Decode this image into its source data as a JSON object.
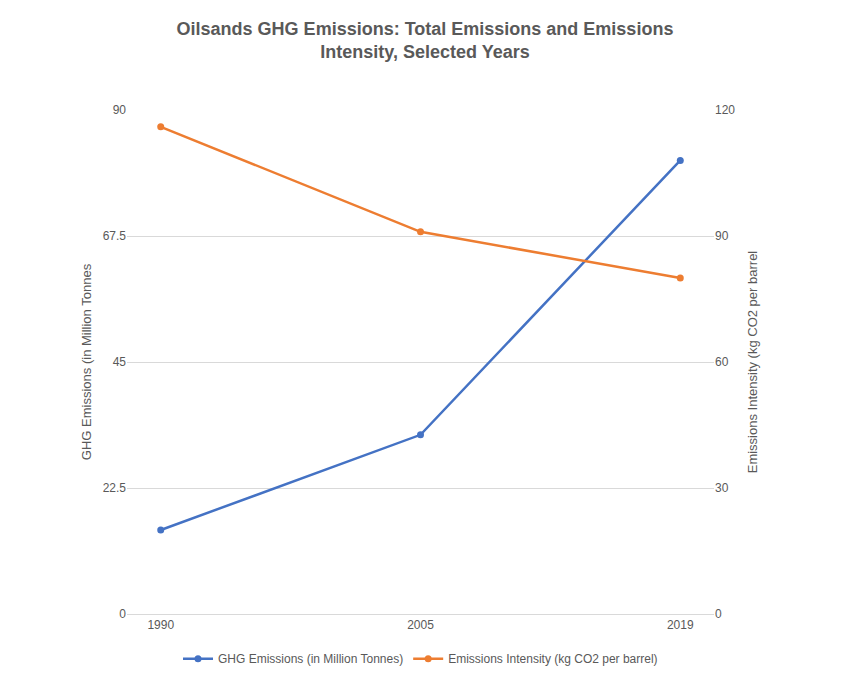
{
  "chart_data": {
    "type": "line",
    "title": "Oilsands GHG Emissions: Total Emissions and Emissions Intensity, Selected Years",
    "ylabel": "GHG Emissions (in Million Tonnes",
    "y2label": "Emissions Intensity (kg CO2 per barrel",
    "categories": [
      "1990",
      "2005",
      "2019"
    ],
    "series": [
      {
        "name": "GHG Emissions (in Million Tonnes)",
        "color": "#4472c4",
        "values": [
          15,
          32,
          81
        ],
        "marker": "circle"
      },
      {
        "name": "Emissions Intensity (kg CO2 per barrel)",
        "color": "#ed7d31",
        "values": [
          116,
          91,
          80
        ],
        "axis": "y2",
        "marker": "circle"
      }
    ],
    "ylim": [
      0,
      90
    ],
    "yticks": [
      0,
      22.5,
      45,
      67.5,
      90
    ],
    "y2lim": [
      0,
      120
    ],
    "y2ticks": [
      0,
      30,
      60,
      90,
      120
    ],
    "grid": true,
    "legend": "bottom"
  }
}
